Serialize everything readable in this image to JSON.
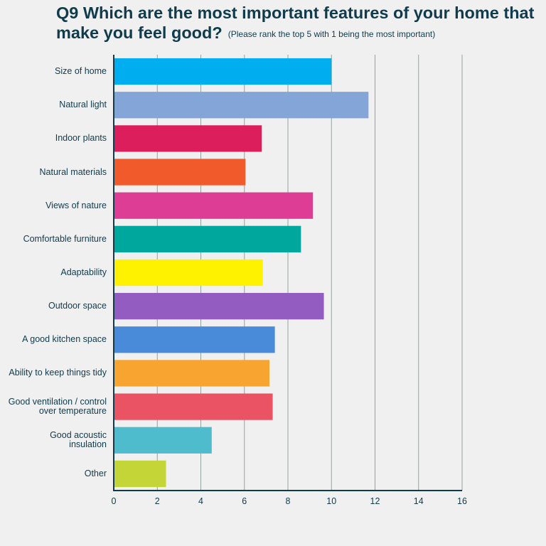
{
  "chart_data": {
    "type": "bar",
    "orientation": "horizontal",
    "title": "Q9 Which are the most important features of your home that make you feel good?",
    "subtitle": "(Please rank the top 5 with 1 being the most important)",
    "xlabel": "",
    "ylabel": "",
    "xlim": [
      0,
      16
    ],
    "xticks": [
      "0",
      "2",
      "4",
      "6",
      "8",
      "10",
      "12",
      "14",
      "16"
    ],
    "grid": "vertical",
    "categories": [
      "Size of home",
      "Natural light",
      "Indoor plants",
      "Natural materials",
      "Views of nature",
      "Comfortable furniture",
      "Adaptability",
      "Outdoor space",
      "A good kitchen space",
      "Ability to keep things tidy",
      "Good ventilation / control over temperature",
      "Good acoustic insulation",
      "Other"
    ],
    "category_lines": [
      [
        "Size of home"
      ],
      [
        "Natural light"
      ],
      [
        "Indoor plants"
      ],
      [
        "Natural materials"
      ],
      [
        "Views of nature"
      ],
      [
        "Comfortable furniture"
      ],
      [
        "Adaptability"
      ],
      [
        "Outdoor space"
      ],
      [
        "A good kitchen space"
      ],
      [
        "Ability to keep things tidy"
      ],
      [
        "Good ventilation / control",
        "over temperature"
      ],
      [
        "Good acoustic",
        "insulation"
      ],
      [
        "Other"
      ]
    ],
    "values": [
      10.0,
      11.7,
      6.8,
      6.05,
      9.15,
      8.6,
      6.85,
      9.65,
      7.4,
      7.15,
      7.3,
      4.5,
      2.4
    ],
    "colors": [
      "#00aeef",
      "#84a5d8",
      "#dc1e5c",
      "#f15a2b",
      "#de3d96",
      "#00a79d",
      "#fff200",
      "#935cc0",
      "#4a8bd9",
      "#f7a530",
      "#e95363",
      "#4ebccc",
      "#c3d537"
    ]
  }
}
